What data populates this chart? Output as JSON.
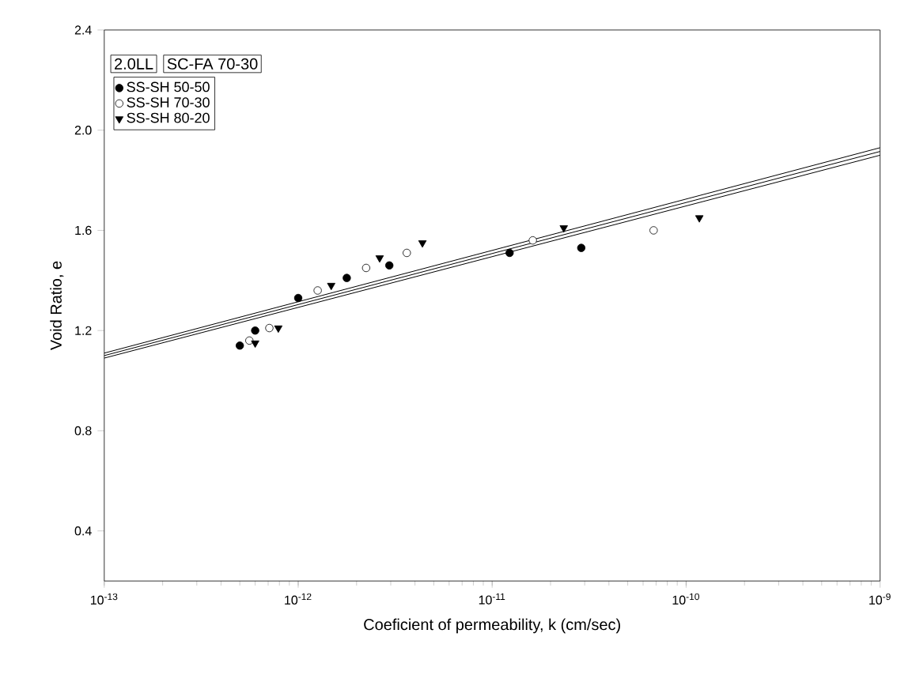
{
  "chart_data": {
    "type": "scatter",
    "xlabel": "Coeficient of permeability, k (cm/sec)",
    "ylabel": "Void Ratio, e",
    "annotations": [
      "2.0LL",
      "SC-FA 70-30"
    ],
    "log": "x",
    "legend": "top left",
    "grid": false,
    "xlim": [
      1e-13,
      1e-09
    ],
    "xticks": [
      {
        "value": 1e-13,
        "label": "10$^{-13}$"
      },
      {
        "value": 1e-12,
        "label": "10$^{-12}$"
      },
      {
        "value": 1e-11,
        "label": "10$^{-11}$"
      },
      {
        "value": 1e-10,
        "label": "10$^{-10}$"
      },
      {
        "value": 1e-09,
        "label": "10$^{-9}$"
      }
    ],
    "ylim": [
      0.2,
      2.4
    ],
    "yticks": [
      {
        "value": 0.4,
        "label": "0.4"
      },
      {
        "value": 0.8,
        "label": "0.8"
      },
      {
        "value": 1.2,
        "label": "1.2"
      },
      {
        "value": 1.6,
        "label": "1.6"
      },
      {
        "value": 2.0,
        "label": "2.0"
      },
      {
        "value": 2.4,
        "label": "2.4"
      }
    ],
    "series": [
      {
        "name": "SS-SH 50-50",
        "color": "#000000",
        "marker": "circle",
        "x": [
          5e-13,
          6e-13,
          1e-12,
          1.78e-12,
          2.95e-12,
          1.23e-11,
          2.88e-11
        ],
        "values": [
          1.14,
          1.2,
          1.33,
          1.41,
          1.46,
          1.51,
          1.53
        ]
      },
      {
        "name": "SS-SH 70-30",
        "color": "#000000",
        "marker": "circle",
        "x": [
          5.6e-13,
          7.1e-13,
          1.26e-12,
          2.24e-12,
          3.63e-12,
          1.62e-11,
          6.8e-11
        ],
        "values": [
          1.16,
          1.21,
          1.36,
          1.45,
          1.51,
          1.56,
          1.6
        ]
      },
      {
        "name": "SS-SH 80-20",
        "color": "#000000",
        "marker": "triangle",
        "x": [
          6e-13,
          7.9e-13,
          1.48e-12,
          2.63e-12,
          4.37e-12,
          2.34e-11,
          1.17e-10
        ],
        "values": [
          1.15,
          1.21,
          1.38,
          1.49,
          1.55,
          1.61,
          1.65
        ]
      },
      {
        "type": "line",
        "color": "#000000",
        "marker": "none",
        "x": [
          1e-13,
          1e-09
        ],
        "values": [
          1.09,
          1.9
        ]
      },
      {
        "type": "line",
        "color": "#000000",
        "marker": "none",
        "x": [
          1e-13,
          1e-09
        ],
        "values": [
          1.1,
          1.915
        ]
      },
      {
        "type": "line",
        "color": "#000000",
        "marker": "none",
        "x": [
          1e-13,
          1e-09
        ],
        "values": [
          1.11,
          1.93
        ]
      }
    ]
  }
}
